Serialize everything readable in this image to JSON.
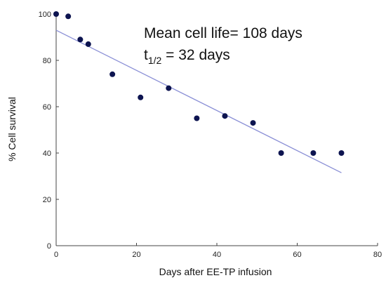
{
  "chart_data": {
    "type": "scatter",
    "xlabel": "Days after EE-TP infusion",
    "ylabel": "% Cell survival",
    "xlim": [
      0,
      80
    ],
    "ylim": [
      0,
      100
    ],
    "xticks": [
      "0",
      "20",
      "40",
      "60",
      "80"
    ],
    "yticks": [
      "0",
      "20",
      "40",
      "60",
      "80",
      "100"
    ],
    "grid": false,
    "series": [
      {
        "x": [
          0,
          3,
          6,
          8,
          14,
          21,
          28,
          35,
          42,
          49,
          56,
          64,
          71
        ],
        "y": [
          100,
          99,
          89,
          87,
          74,
          64,
          68,
          55,
          56,
          53,
          40,
          40,
          40
        ]
      }
    ],
    "trendline": {
      "x": [
        0,
        71
      ],
      "y": [
        93,
        31.5
      ]
    },
    "colors": {
      "points": "#0d1450",
      "trendline": "#8a8fd6",
      "axes": "#444444"
    },
    "annotations": {
      "line1": "Mean cell life= 108 days",
      "line2_prefix": "t",
      "line2_subscript": "1/2",
      "line2_suffix": " = 32 days"
    }
  }
}
